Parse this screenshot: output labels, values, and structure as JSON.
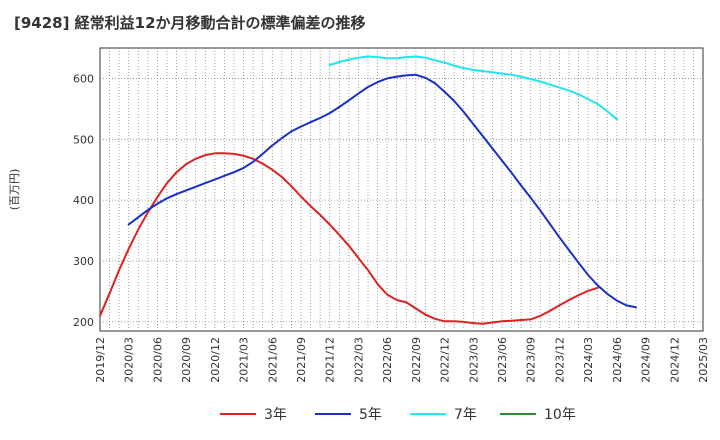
{
  "chart_data": {
    "type": "line",
    "title": "[9428]  経常利益12か月移動合計の標準偏差の推移",
    "ylabel": "(百万円)",
    "xlabel": "",
    "ylim": [
      185,
      650
    ],
    "yticks": [
      200,
      300,
      400,
      500,
      600
    ],
    "xlim": [
      "2019-12",
      "2025-03"
    ],
    "xticks": [
      "2019/12",
      "2020/03",
      "2020/06",
      "2020/09",
      "2020/12",
      "2021/03",
      "2021/06",
      "2021/09",
      "2021/12",
      "2022/03",
      "2022/06",
      "2022/09",
      "2022/12",
      "2023/03",
      "2023/06",
      "2023/09",
      "2023/12",
      "2024/03",
      "2024/06",
      "2024/09",
      "2024/12",
      "2025/03"
    ],
    "grid": true,
    "legend_position": "bottom",
    "series": [
      {
        "name": "3年",
        "color": "#dd2222",
        "points": [
          [
            "2019-12",
            210
          ],
          [
            "2020-01",
            247
          ],
          [
            "2020-02",
            285
          ],
          [
            "2020-03",
            320
          ],
          [
            "2020-04",
            352
          ],
          [
            "2020-05",
            380
          ],
          [
            "2020-06",
            405
          ],
          [
            "2020-07",
            428
          ],
          [
            "2020-08",
            446
          ],
          [
            "2020-09",
            459
          ],
          [
            "2020-10",
            468
          ],
          [
            "2020-11",
            474
          ],
          [
            "2020-12",
            477
          ],
          [
            "2021-01",
            477
          ],
          [
            "2021-02",
            476
          ],
          [
            "2021-03",
            473
          ],
          [
            "2021-04",
            468
          ],
          [
            "2021-05",
            460
          ],
          [
            "2021-06",
            450
          ],
          [
            "2021-07",
            438
          ],
          [
            "2021-08",
            423
          ],
          [
            "2021-09",
            406
          ],
          [
            "2021-10",
            390
          ],
          [
            "2021-11",
            376
          ],
          [
            "2021-12",
            360
          ],
          [
            "2022-01",
            343
          ],
          [
            "2022-02",
            325
          ],
          [
            "2022-03",
            305
          ],
          [
            "2022-04",
            285
          ],
          [
            "2022-05",
            262
          ],
          [
            "2022-06",
            245
          ],
          [
            "2022-07",
            236
          ],
          [
            "2022-08",
            232
          ],
          [
            "2022-09",
            222
          ],
          [
            "2022-10",
            212
          ],
          [
            "2022-11",
            205
          ],
          [
            "2022-12",
            201
          ],
          [
            "2023-01",
            201
          ],
          [
            "2023-02",
            200
          ],
          [
            "2023-03",
            198
          ],
          [
            "2023-04",
            197
          ],
          [
            "2023-05",
            199
          ],
          [
            "2023-06",
            201
          ],
          [
            "2023-07",
            202
          ],
          [
            "2023-08",
            203
          ],
          [
            "2023-09",
            204
          ],
          [
            "2023-10",
            210
          ],
          [
            "2023-11",
            218
          ],
          [
            "2023-12",
            227
          ],
          [
            "2024-01",
            236
          ],
          [
            "2024-02",
            244
          ],
          [
            "2024-03",
            251
          ],
          [
            "2024-04",
            256
          ]
        ]
      },
      {
        "name": "5年",
        "color": "#1a2fc8",
        "points": [
          [
            "2020-03",
            360
          ],
          [
            "2020-04",
            372
          ],
          [
            "2020-05",
            384
          ],
          [
            "2020-06",
            394
          ],
          [
            "2020-07",
            403
          ],
          [
            "2020-08",
            410
          ],
          [
            "2020-09",
            416
          ],
          [
            "2020-10",
            422
          ],
          [
            "2020-11",
            428
          ],
          [
            "2020-12",
            434
          ],
          [
            "2021-01",
            440
          ],
          [
            "2021-02",
            446
          ],
          [
            "2021-03",
            453
          ],
          [
            "2021-04",
            463
          ],
          [
            "2021-05",
            476
          ],
          [
            "2021-06",
            490
          ],
          [
            "2021-07",
            502
          ],
          [
            "2021-08",
            513
          ],
          [
            "2021-09",
            521
          ],
          [
            "2021-10",
            528
          ],
          [
            "2021-11",
            535
          ],
          [
            "2021-12",
            543
          ],
          [
            "2022-01",
            553
          ],
          [
            "2022-02",
            564
          ],
          [
            "2022-03",
            575
          ],
          [
            "2022-04",
            586
          ],
          [
            "2022-05",
            594
          ],
          [
            "2022-06",
            600
          ],
          [
            "2022-07",
            603
          ],
          [
            "2022-08",
            605
          ],
          [
            "2022-09",
            606
          ],
          [
            "2022-10",
            601
          ],
          [
            "2022-11",
            592
          ],
          [
            "2022-12",
            578
          ],
          [
            "2023-01",
            563
          ],
          [
            "2023-02",
            545
          ],
          [
            "2023-03",
            525
          ],
          [
            "2023-04",
            505
          ],
          [
            "2023-05",
            485
          ],
          [
            "2023-06",
            465
          ],
          [
            "2023-07",
            445
          ],
          [
            "2023-08",
            424
          ],
          [
            "2023-09",
            404
          ],
          [
            "2023-10",
            383
          ],
          [
            "2023-11",
            361
          ],
          [
            "2023-12",
            339
          ],
          [
            "2024-01",
            318
          ],
          [
            "2024-02",
            297
          ],
          [
            "2024-03",
            277
          ],
          [
            "2024-04",
            260
          ],
          [
            "2024-05",
            246
          ],
          [
            "2024-06",
            235
          ],
          [
            "2024-07",
            227
          ],
          [
            "2024-08",
            224
          ]
        ]
      },
      {
        "name": "7年",
        "color": "#22e5ee",
        "points": [
          [
            "2021-12",
            622
          ],
          [
            "2022-01",
            627
          ],
          [
            "2022-02",
            631
          ],
          [
            "2022-03",
            634
          ],
          [
            "2022-04",
            636
          ],
          [
            "2022-05",
            635
          ],
          [
            "2022-06",
            633
          ],
          [
            "2022-07",
            633
          ],
          [
            "2022-08",
            635
          ],
          [
            "2022-09",
            636
          ],
          [
            "2022-10",
            634
          ],
          [
            "2022-11",
            630
          ],
          [
            "2022-12",
            626
          ],
          [
            "2023-01",
            621
          ],
          [
            "2023-02",
            617
          ],
          [
            "2023-03",
            614
          ],
          [
            "2023-04",
            612
          ],
          [
            "2023-05",
            610
          ],
          [
            "2023-06",
            608
          ],
          [
            "2023-07",
            606
          ],
          [
            "2023-08",
            603
          ],
          [
            "2023-09",
            599
          ],
          [
            "2023-10",
            595
          ],
          [
            "2023-11",
            590
          ],
          [
            "2023-12",
            585
          ],
          [
            "2024-01",
            580
          ],
          [
            "2024-02",
            574
          ],
          [
            "2024-03",
            566
          ],
          [
            "2024-04",
            558
          ],
          [
            "2024-05",
            546
          ],
          [
            "2024-06",
            533
          ]
        ]
      },
      {
        "name": "10年",
        "color": "#2e8b2e",
        "points": []
      }
    ]
  }
}
